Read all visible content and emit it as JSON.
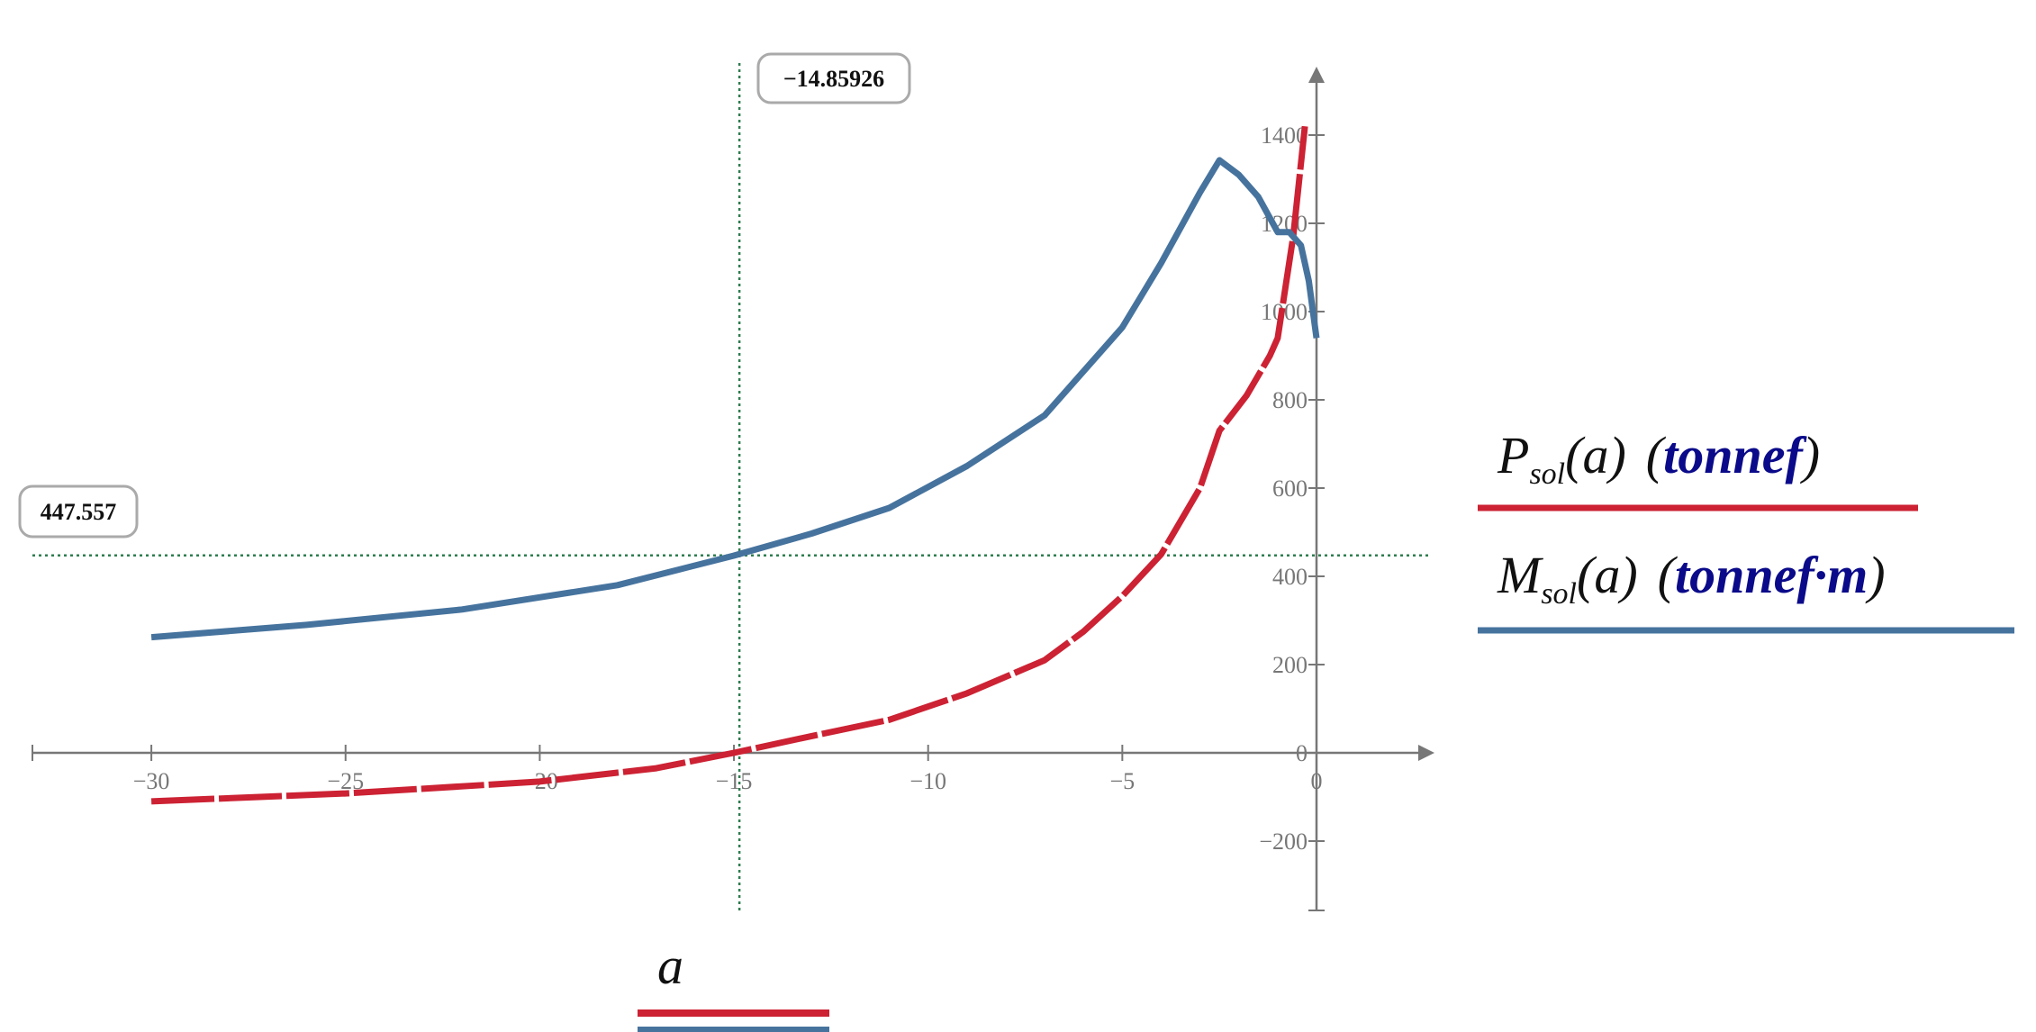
{
  "chart_data": {
    "type": "line",
    "xlabel": "a",
    "xlim": [
      -33,
      3
    ],
    "ylim": [
      -360,
      1540
    ],
    "x_ticks": [
      -30,
      -25,
      -20,
      -15,
      -10,
      -5,
      0
    ],
    "y_ticks": [
      -200,
      0,
      200,
      400,
      600,
      800,
      1000,
      1200,
      1400
    ],
    "grid": false,
    "legend_position": "right",
    "series": [
      {
        "name": "P_sol(a) (tonnef)",
        "color": "#cc2233",
        "style": "dashed",
        "x": [
          -30,
          -25,
          -20,
          -17,
          -15,
          -13,
          -11,
          -9,
          -7,
          -6,
          -5,
          -4,
          -3,
          -2.5,
          -1.8,
          -1.2,
          -1,
          -0.6,
          -0.3
        ],
        "y": [
          -110,
          -92,
          -65,
          -35,
          0,
          38,
          75,
          135,
          210,
          275,
          355,
          450,
          600,
          730,
          810,
          900,
          940,
          1170,
          1420
        ]
      },
      {
        "name": "M_sol(a) (tonnef·m)",
        "color": "#46739e",
        "style": "solid",
        "x": [
          -30,
          -26,
          -22,
          -18,
          -15,
          -13,
          -11,
          -9,
          -7,
          -5,
          -4,
          -3,
          -2.5,
          -2,
          -1.5,
          -1,
          -0.7,
          -0.4,
          -0.2,
          0
        ],
        "y": [
          262,
          290,
          325,
          380,
          447,
          497,
          555,
          650,
          765,
          964,
          1110,
          1270,
          1343,
          1310,
          1260,
          1180,
          1180,
          1150,
          1070,
          940
        ]
      }
    ],
    "crosshair": {
      "x": -14.85926,
      "y": 447.557,
      "x_label": "−14.85926",
      "y_label": "447.557",
      "color": "#2e7d4f"
    },
    "legend": {
      "p_main": "P",
      "p_sub": "sol",
      "p_arg": "(a)",
      "p_unit": "tonnef",
      "m_main": "M",
      "m_sub": "sol",
      "m_arg": "(a)",
      "m_unit": "tonnef·m"
    }
  }
}
